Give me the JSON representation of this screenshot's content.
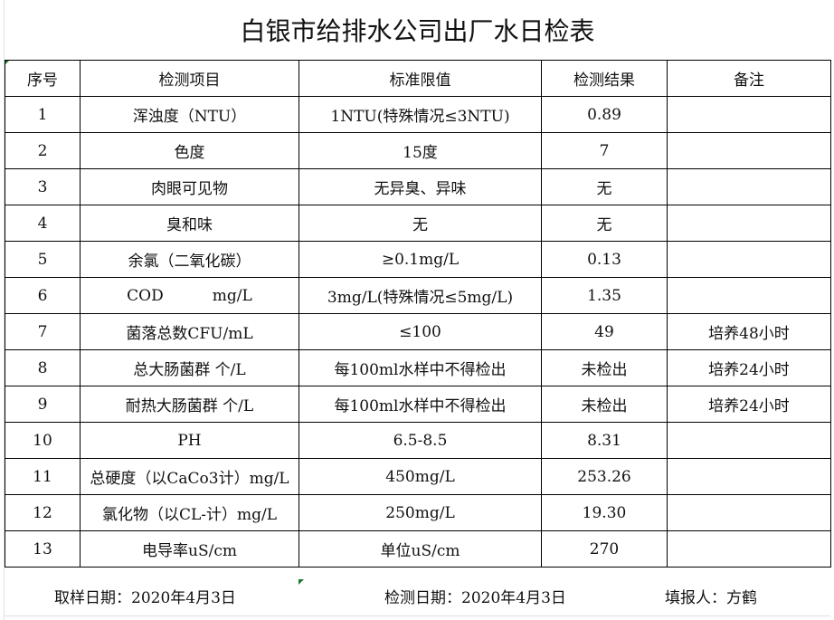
{
  "title": "白银市给排水公司出厂水日检表",
  "headers": [
    "序号",
    "检测项目",
    "标准限值",
    "检测结果",
    "备注"
  ],
  "rows": [
    [
      "1",
      "浑浊度（NTU）",
      "1NTU(特殊情况≤3NTU)",
      "0.89",
      ""
    ],
    [
      "2",
      "色度",
      "15度",
      "7",
      ""
    ],
    [
      "3",
      "肉眼可见物",
      "无异臭、异味",
      "无",
      ""
    ],
    [
      "4",
      "臭和味",
      "无",
      "无",
      ""
    ],
    [
      "5",
      "余氯（二氧化碳）",
      "≥0.1mg/L",
      "0.13",
      ""
    ],
    [
      "6",
      "COD          mg/L",
      "3mg/L(特殊情况≤5mg/L)",
      "1.35",
      ""
    ],
    [
      "7",
      "菌落总数CFU/mL",
      "≤100",
      "49",
      "培养48小时"
    ],
    [
      "8",
      "总大肠菌群 个/L",
      "每100ml水样中不得检出",
      "未检出",
      "培养24小时"
    ],
    [
      "9",
      "耐热大肠菌群 个/L",
      "每100ml水样中不得检出",
      "未检出",
      "培养24小时"
    ],
    [
      "10",
      "PH",
      "6.5-8.5",
      "8.31",
      ""
    ],
    [
      "11",
      "总硬度（以CaCo3计）mg/L",
      "450mg/L",
      "253.26",
      ""
    ],
    [
      "12",
      "氯化物（以CL-计）mg/L",
      "250mg/L",
      "19.30",
      ""
    ],
    [
      "13",
      "电导率uS/cm",
      "单位uS/cm",
      "270",
      ""
    ]
  ],
  "footer": {
    "sampling_date": "取样日期：2020年4月3日",
    "test_date": "检测日期：2020年4月3日",
    "reporter": "填报人：方鹤"
  }
}
